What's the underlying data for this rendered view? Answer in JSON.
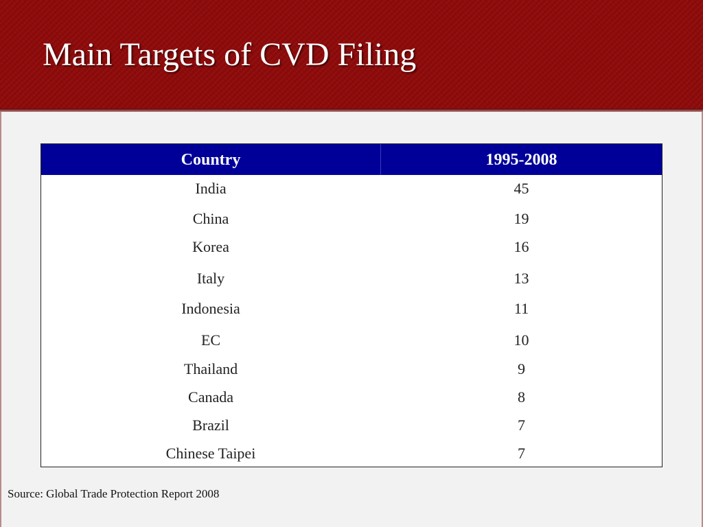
{
  "slide": {
    "title": "Main Targets of CVD Filing",
    "source": "Source: Global Trade Protection Report 2008"
  },
  "table": {
    "headers": {
      "country": "Country",
      "period": "1995-2008"
    },
    "rows": [
      {
        "country": "India",
        "value": "45"
      },
      {
        "country": "China",
        "value": "19"
      },
      {
        "country": "Korea",
        "value": "16"
      },
      {
        "country": "Italy",
        "value": "13"
      },
      {
        "country": "Indonesia",
        "value": "11"
      },
      {
        "country": "EC",
        "value": "10"
      },
      {
        "country": "Thailand",
        "value": "9"
      },
      {
        "country": "Canada",
        "value": "8"
      },
      {
        "country": "Brazil",
        "value": "7"
      },
      {
        "country": "Chinese Taipei",
        "value": "7"
      }
    ]
  },
  "colors": {
    "header_band": "#8e0a0a",
    "table_header": "#000099",
    "background": "#f2f2f2"
  }
}
